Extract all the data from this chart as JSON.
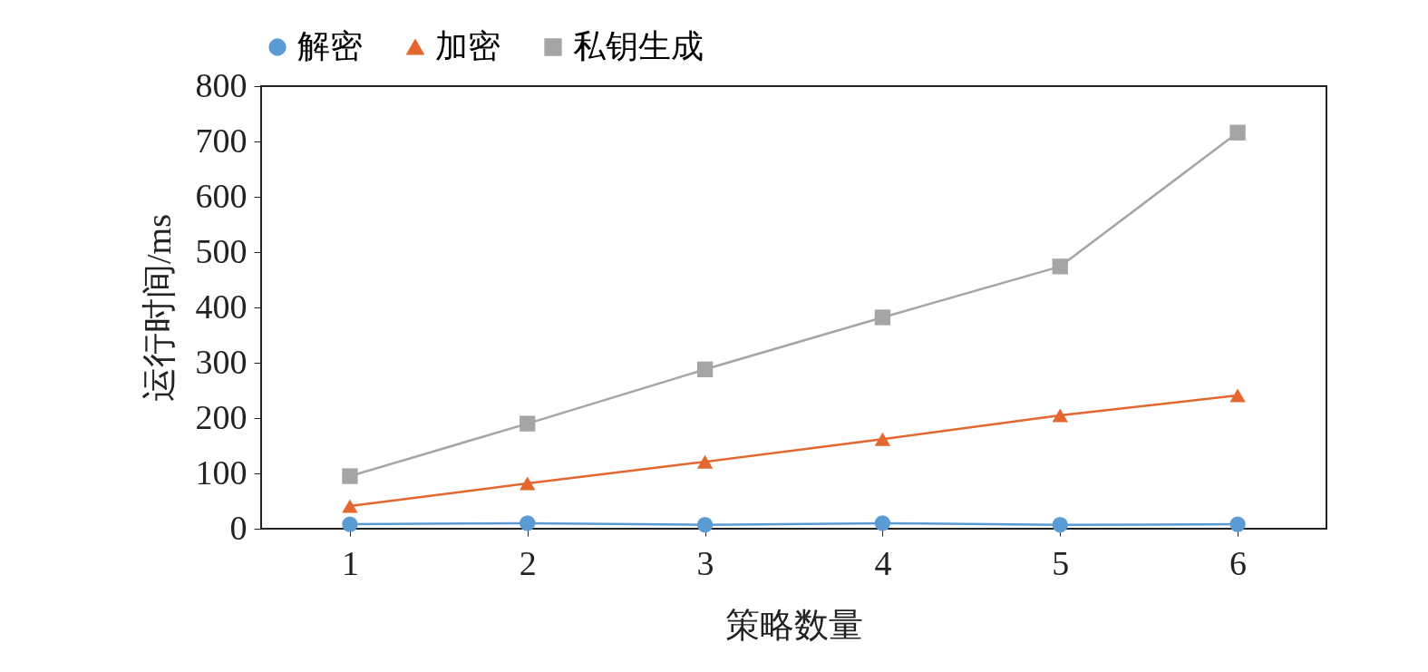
{
  "chart_data": {
    "type": "line",
    "xlabel": "策略数量",
    "ylabel": "运行时间/ms",
    "x": [
      1,
      2,
      3,
      4,
      5,
      6
    ],
    "xlim": [
      0.5,
      6.5
    ],
    "xticks": [
      1,
      2,
      3,
      4,
      5,
      6
    ],
    "ylim": [
      0,
      800
    ],
    "yticks": [
      0,
      100,
      200,
      300,
      400,
      500,
      600,
      700,
      800
    ],
    "grid": false,
    "legend": "top",
    "line_style": "solid",
    "series": [
      {
        "name": "解密",
        "color": "#5b9bd5",
        "marker": "circle",
        "values": [
          8,
          10,
          7,
          10,
          7,
          8
        ]
      },
      {
        "name": "加密",
        "color": "#e3672f",
        "marker": "triangle",
        "values": [
          41,
          82,
          121,
          162,
          205,
          241
        ]
      },
      {
        "name": "私钥生成",
        "color": "#a5a5a7",
        "marker": "square",
        "values": [
          95,
          190,
          288,
          382,
          474,
          716
        ]
      }
    ]
  }
}
